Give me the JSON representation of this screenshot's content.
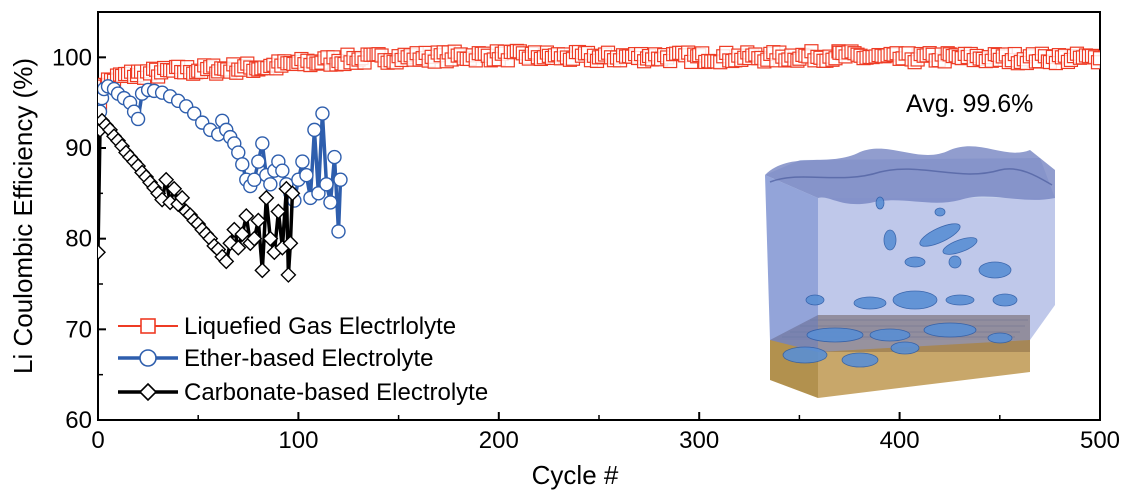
{
  "chart_data": {
    "type": "line",
    "xlabel": "Cycle #",
    "ylabel": "Li Coulombic Efficiency (%)",
    "xlim": [
      0,
      500
    ],
    "ylim": [
      60,
      105
    ],
    "xticks": [
      0,
      100,
      200,
      300,
      400,
      500
    ],
    "yticks": [
      60,
      70,
      80,
      90,
      100
    ],
    "grid": false,
    "legend_position": "bottom-left",
    "annotation": "Avg. 99.6%",
    "series": [
      {
        "name": "Liquefied Gas Electrlolyte",
        "color": "#ee3b24",
        "marker": "square",
        "points": [
          [
            1,
            95.5
          ],
          [
            2,
            96.5
          ],
          [
            3,
            97.0
          ],
          [
            5,
            97.3
          ],
          [
            8,
            97.6
          ],
          [
            12,
            97.9
          ],
          [
            20,
            98.2
          ],
          [
            30,
            98.3
          ],
          [
            40,
            98.5
          ],
          [
            50,
            98.6
          ],
          [
            60,
            98.7
          ],
          [
            70,
            98.8
          ],
          [
            80,
            98.9
          ],
          [
            90,
            99.1
          ],
          [
            100,
            99.3
          ],
          [
            110,
            99.5
          ],
          [
            120,
            99.7
          ],
          [
            130,
            99.8
          ],
          [
            140,
            99.9
          ],
          [
            150,
            100.0
          ],
          [
            175,
            100.1
          ],
          [
            200,
            100.2
          ],
          [
            225,
            100.1
          ],
          [
            250,
            100.0
          ],
          [
            275,
            100.1
          ],
          [
            300,
            100.0
          ],
          [
            325,
            100.0
          ],
          [
            350,
            100.1
          ],
          [
            370,
            100.2
          ],
          [
            400,
            99.9
          ],
          [
            425,
            100.0
          ],
          [
            450,
            99.9
          ],
          [
            475,
            99.9
          ],
          [
            500,
            99.9
          ]
        ]
      },
      {
        "name": "Ether-based Electrolyte",
        "color": "#2e5ead",
        "marker": "circle",
        "points": [
          [
            1,
            94.0
          ],
          [
            2,
            95.5
          ],
          [
            3,
            96.5
          ],
          [
            5,
            96.8
          ],
          [
            8,
            96.5
          ],
          [
            10,
            96.0
          ],
          [
            13,
            95.5
          ],
          [
            16,
            95.0
          ],
          [
            18,
            94.0
          ],
          [
            20,
            93.2
          ],
          [
            22,
            96.0
          ],
          [
            25,
            96.4
          ],
          [
            28,
            96.3
          ],
          [
            32,
            96.1
          ],
          [
            36,
            95.7
          ],
          [
            40,
            95.2
          ],
          [
            44,
            94.6
          ],
          [
            48,
            93.8
          ],
          [
            52,
            92.8
          ],
          [
            56,
            92.0
          ],
          [
            60,
            91.5
          ],
          [
            62,
            93.0
          ],
          [
            64,
            92.0
          ],
          [
            66,
            91.2
          ],
          [
            68,
            90.5
          ],
          [
            70,
            89.5
          ],
          [
            72,
            88.2
          ],
          [
            74,
            86.5
          ],
          [
            76,
            85.8
          ],
          [
            78,
            86.5
          ],
          [
            80,
            88.5
          ],
          [
            82,
            90.5
          ],
          [
            84,
            87.0
          ],
          [
            86,
            86.0
          ],
          [
            88,
            87.5
          ],
          [
            90,
            88.5
          ],
          [
            92,
            87.5
          ],
          [
            94,
            86.0
          ],
          [
            96,
            85.0
          ],
          [
            98,
            84.2
          ],
          [
            100,
            86.5
          ],
          [
            102,
            88.5
          ],
          [
            104,
            87.0
          ],
          [
            106,
            84.5
          ],
          [
            108,
            92.0
          ],
          [
            110,
            85.0
          ],
          [
            112,
            93.8
          ],
          [
            114,
            86.0
          ],
          [
            116,
            84.0
          ],
          [
            118,
            89.0
          ],
          [
            120,
            80.8
          ],
          [
            121,
            86.5
          ]
        ]
      },
      {
        "name": "Carbonate-based Electrolyte",
        "color": "#000000",
        "marker": "diamond",
        "points": [
          [
            0,
            78.5
          ],
          [
            1,
            92.0
          ],
          [
            2,
            93.0
          ],
          [
            4,
            92.5
          ],
          [
            6,
            92.0
          ],
          [
            8,
            91.3
          ],
          [
            10,
            90.8
          ],
          [
            12,
            90.2
          ],
          [
            14,
            89.5
          ],
          [
            16,
            89.0
          ],
          [
            18,
            88.5
          ],
          [
            20,
            88.0
          ],
          [
            22,
            87.3
          ],
          [
            24,
            86.8
          ],
          [
            26,
            86.2
          ],
          [
            28,
            85.6
          ],
          [
            30,
            85.0
          ],
          [
            32,
            84.3
          ],
          [
            34,
            86.5
          ],
          [
            36,
            84.0
          ],
          [
            38,
            85.5
          ],
          [
            40,
            83.8
          ],
          [
            42,
            84.5
          ],
          [
            44,
            83.0
          ],
          [
            46,
            82.6
          ],
          [
            48,
            82.0
          ],
          [
            50,
            81.6
          ],
          [
            52,
            81.0
          ],
          [
            54,
            80.5
          ],
          [
            56,
            80.0
          ],
          [
            58,
            79.2
          ],
          [
            60,
            78.8
          ],
          [
            62,
            78.0
          ],
          [
            64,
            77.5
          ],
          [
            66,
            79.5
          ],
          [
            68,
            81.0
          ],
          [
            70,
            79.0
          ],
          [
            72,
            80.5
          ],
          [
            74,
            82.5
          ],
          [
            76,
            79.5
          ],
          [
            78,
            80.0
          ],
          [
            80,
            82.0
          ],
          [
            82,
            76.5
          ],
          [
            84,
            84.5
          ],
          [
            86,
            80.0
          ],
          [
            88,
            78.5
          ],
          [
            90,
            83.0
          ],
          [
            92,
            79.0
          ],
          [
            94,
            85.5
          ],
          [
            95,
            76.0
          ],
          [
            96,
            79.5
          ],
          [
            97,
            85.0
          ]
        ]
      }
    ]
  }
}
